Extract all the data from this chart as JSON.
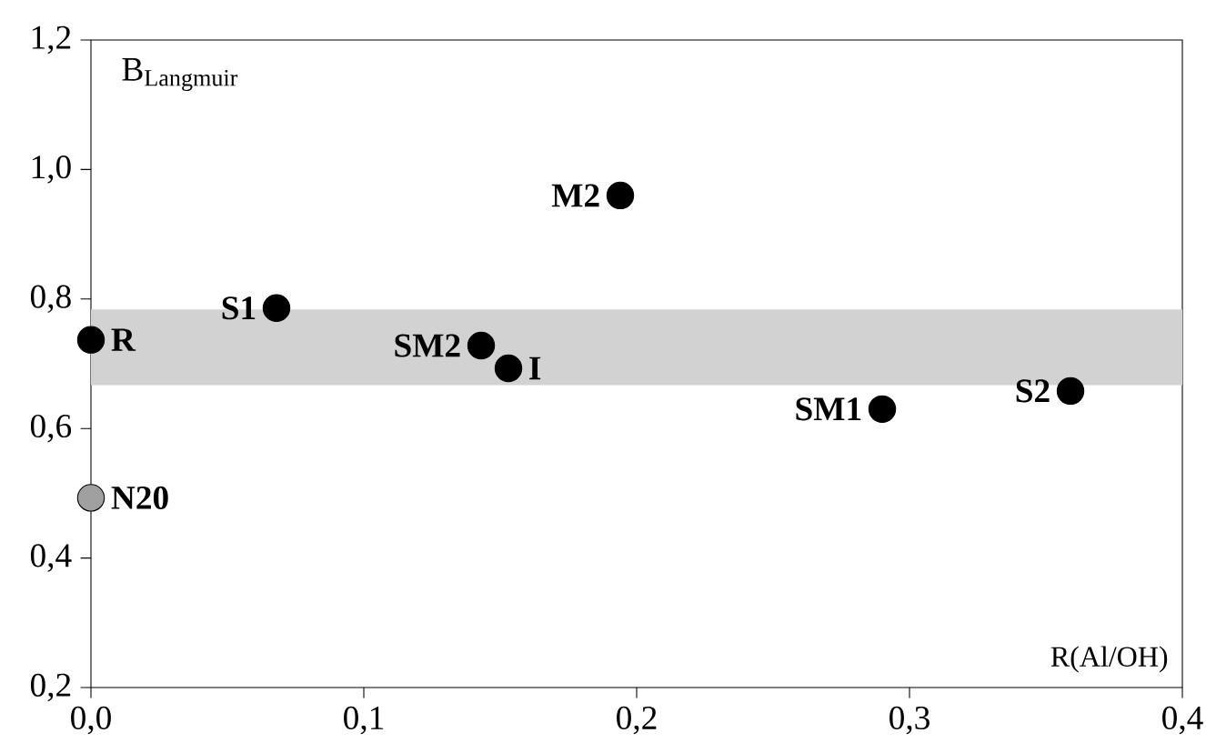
{
  "chart_data": {
    "type": "scatter",
    "xlabel": "R(Al/OH)",
    "ylabel": "B$_{Langmuir}$",
    "x": [
      0.0,
      0.0,
      0.068,
      0.143,
      0.153,
      0.194,
      0.29,
      0.359
    ],
    "values": [
      0.737,
      0.493,
      0.786,
      0.728,
      0.693,
      0.96,
      0.63,
      0.658
    ],
    "colors": [
      "#000000",
      "#a0a0a0",
      "#000000",
      "#000000",
      "#000000",
      "#000000",
      "#000000",
      "#000000"
    ],
    "marker": "circle",
    "xlim": [
      0.0,
      0.4
    ],
    "ylim": [
      0.2,
      1.2
    ],
    "xticks": [
      {
        "value": 0.0,
        "label": "0,0"
      },
      {
        "value": 0.1,
        "label": "0,1"
      },
      {
        "value": 0.2,
        "label": "0,2"
      },
      {
        "value": 0.3,
        "label": "0,3"
      },
      {
        "value": 0.4,
        "label": "0,4"
      }
    ],
    "yticks": [
      {
        "value": 0.2,
        "label": "0,2"
      },
      {
        "value": 0.4,
        "label": "0,4"
      },
      {
        "value": 0.6,
        "label": "0,6"
      },
      {
        "value": 0.8,
        "label": "0,8"
      },
      {
        "value": 1.0,
        "label": "1,0"
      },
      {
        "value": 1.2,
        "label": "1,2"
      }
    ],
    "bands": [
      {
        "axis": "y",
        "from": 0.667,
        "to": 0.784,
        "color": "#d2d2d2"
      }
    ],
    "annotations": [
      {
        "text": "R",
        "x": 0.0,
        "y": 0.737
      },
      {
        "text": "N20",
        "x": 0.0,
        "y": 0.493
      },
      {
        "text": "S1",
        "x": 0.068,
        "y": 0.786
      },
      {
        "text": "SM2",
        "x": 0.143,
        "y": 0.728
      },
      {
        "text": "I",
        "x": 0.153,
        "y": 0.693
      },
      {
        "text": "M2",
        "x": 0.194,
        "y": 0.96
      },
      {
        "text": "SM1",
        "x": 0.29,
        "y": 0.63
      },
      {
        "text": "S2",
        "x": 0.359,
        "y": 0.658
      }
    ],
    "grid": false
  }
}
